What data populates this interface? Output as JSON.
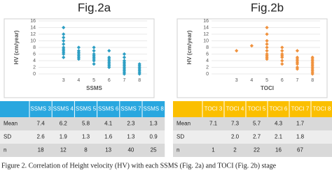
{
  "chart_data": [
    {
      "type": "scatter",
      "title": "Fig.2a",
      "x_label": "SSMS",
      "y_label": "HV (cm/year)",
      "color": "#2e9fc4",
      "x": [
        3,
        3,
        3,
        3,
        3,
        3,
        3,
        3,
        3,
        3,
        3,
        4,
        4,
        4,
        4,
        4,
        4,
        4,
        5,
        5,
        5,
        5,
        5,
        5,
        5,
        5,
        6,
        6,
        6,
        6,
        6,
        6,
        6,
        6,
        7,
        7,
        7,
        7,
        7,
        7,
        7,
        7,
        7,
        7,
        7,
        8,
        8,
        8,
        8,
        8,
        8,
        8
      ],
      "values": [
        14,
        12,
        11,
        10,
        9,
        8,
        7.5,
        7,
        6.5,
        6,
        5,
        8,
        7,
        6.5,
        6,
        5.5,
        5,
        4.5,
        8,
        7,
        6,
        5.5,
        5,
        4.5,
        4,
        3,
        7,
        5,
        4.5,
        4,
        3.5,
        3,
        2.5,
        2,
        6,
        5,
        4,
        3.5,
        3,
        2.5,
        2,
        1.5,
        1,
        0.5,
        0,
        3,
        2.5,
        2,
        1.5,
        1,
        0.5,
        0
      ],
      "xlim": [
        2,
        8.5
      ],
      "xticks": [
        3,
        4,
        5,
        6,
        7,
        8
      ],
      "ylim": [
        0,
        16
      ],
      "yticks": [
        0,
        2,
        4,
        6,
        8,
        10,
        12,
        14,
        16
      ],
      "grid": true
    },
    {
      "type": "scatter",
      "title": "Fig.2b",
      "x_label": "TOCI",
      "y_label": "HV (cm/year)",
      "color": "#f0923e",
      "x": [
        3,
        4,
        5,
        5,
        5,
        5,
        5,
        5,
        5,
        5,
        5,
        5,
        6,
        6,
        6,
        6,
        6,
        6,
        6,
        7,
        7,
        7,
        7,
        7,
        7,
        7,
        7,
        8,
        8,
        8,
        8,
        8,
        8,
        8,
        8,
        8,
        8,
        8
      ],
      "values": [
        7,
        8.5,
        14,
        12,
        10,
        9,
        8,
        7,
        6,
        5.5,
        5,
        4.5,
        8,
        7,
        6,
        5.5,
        5,
        4,
        3,
        7,
        5,
        4.5,
        4,
        3.5,
        3,
        2,
        1.5,
        5,
        4.5,
        4,
        3.5,
        3,
        2.5,
        2,
        1.5,
        1,
        0.5,
        0
      ],
      "xlim": [
        2,
        8.5
      ],
      "xticks": [
        3,
        4,
        5,
        6,
        7,
        8
      ],
      "ylim": [
        0,
        16
      ],
      "yticks": [
        0,
        2,
        4,
        6,
        8,
        10,
        12,
        14,
        16
      ],
      "grid": true
    }
  ],
  "tables": [
    {
      "header": [
        "SSMS 3",
        "SSMS 4",
        "SSMS 5",
        "SSMS 6",
        "SSMS 7",
        "SSMS 8"
      ],
      "rows": [
        [
          "Mean",
          "7.4",
          "6.2",
          "5.8",
          "4.1",
          "2.3",
          "1.3"
        ],
        [
          "SD",
          "2.6",
          "1.9",
          "1.3",
          "1.6",
          "1.3",
          "0.9"
        ],
        [
          "n",
          "18",
          "12",
          "8",
          "13",
          "40",
          "25"
        ]
      ]
    },
    {
      "header": [
        "TOCI 3",
        "TOCI 4",
        "TOCI 5",
        "TOCI 6",
        "TOCI 7",
        "TOCI 8"
      ],
      "rows": [
        [
          "Mean",
          "7.1",
          "7.3",
          "5.7",
          "4.3",
          "1.7",
          null
        ],
        [
          "SD",
          null,
          "2.0",
          "2.7",
          "2.1",
          "1.8",
          null
        ],
        [
          "n",
          "1",
          "2",
          "22",
          "16",
          "67",
          null
        ]
      ]
    }
  ],
  "caption": "Figure 2.   Correlation of Height velocity (HV) with each SSMS (Fig. 2a) and TOCI (Fig. 2b) stage"
}
